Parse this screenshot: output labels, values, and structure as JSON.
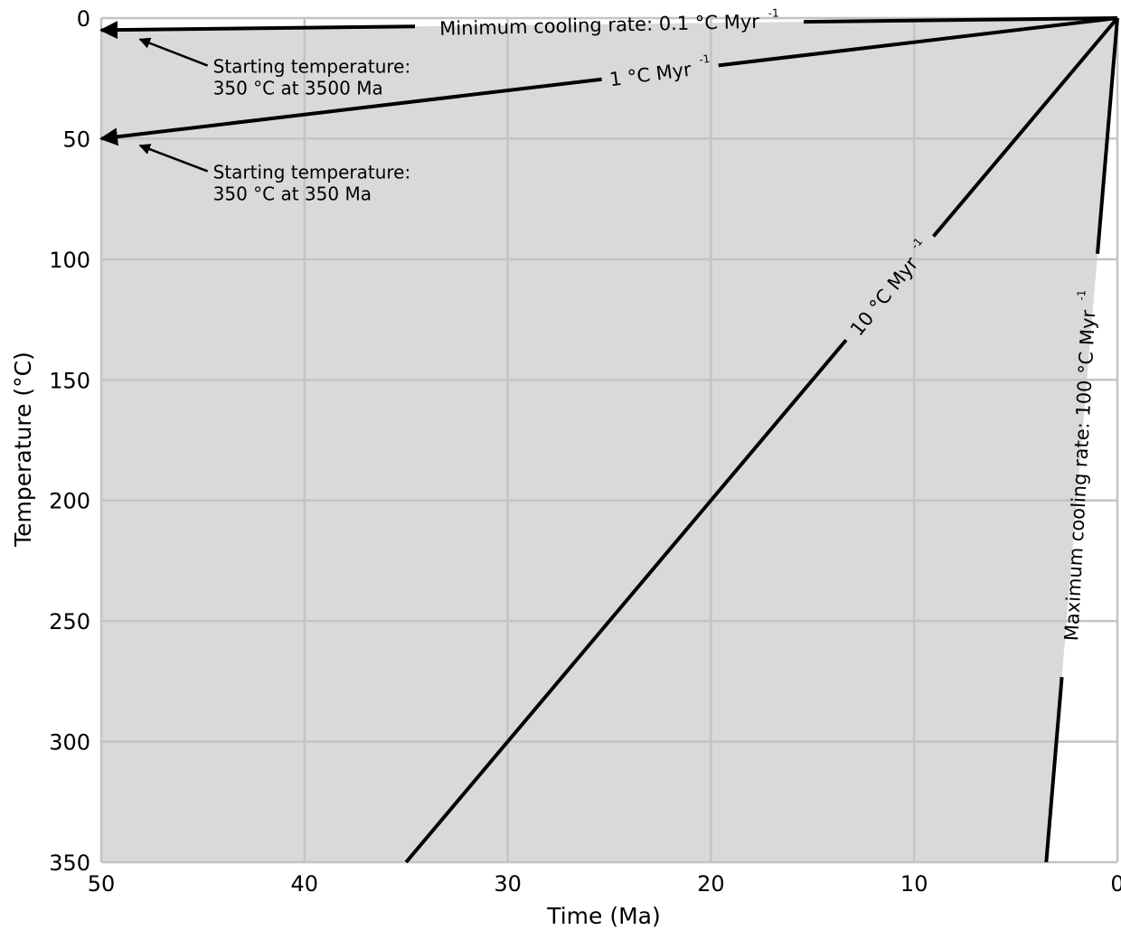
{
  "chart_data": {
    "type": "line",
    "title": "",
    "xlabel": "Time (Ma)",
    "ylabel": "Temperature (°C)",
    "xlim": [
      50,
      0
    ],
    "ylim": [
      350,
      0
    ],
    "x_inverted": true,
    "y_inverted": true,
    "grid": true,
    "x_ticks": [
      50,
      40,
      30,
      20,
      10,
      0
    ],
    "y_ticks": [
      0,
      50,
      100,
      150,
      200,
      250,
      300,
      350
    ],
    "region_color": "#d9d9d9",
    "line_color": "#000000",
    "grid_color": "#c4c4c4",
    "series": [
      {
        "id": "rate01",
        "label": "Minimum cooling rate: 0.1 °C Myr",
        "superscript": "-1",
        "x": [
          0,
          50
        ],
        "y": [
          0,
          5
        ],
        "arrow_end": true
      },
      {
        "id": "rate1",
        "label": "1 °C Myr",
        "superscript": "-1",
        "x": [
          0,
          50
        ],
        "y": [
          0,
          50
        ],
        "arrow_end": true
      },
      {
        "id": "rate10",
        "label": "10 °C Myr",
        "superscript": "-1",
        "x": [
          0,
          35
        ],
        "y": [
          0,
          350
        ],
        "arrow_end": false
      },
      {
        "id": "rate100",
        "label": "Maximum cooling rate: 100 °C Myr",
        "superscript": "-1",
        "x": [
          0,
          3.5
        ],
        "y": [
          0,
          350
        ],
        "arrow_end": false
      }
    ],
    "annotations": [
      {
        "id": "annot-3500",
        "lines": [
          "Starting temperature:",
          "350 °C at 3500 Ma"
        ],
        "x": 44.5,
        "y": 22.7,
        "arrow_to": [
          48.1,
          8.8
        ]
      },
      {
        "id": "annot-350",
        "lines": [
          "Starting temperature:",
          "350 °C at 350 Ma"
        ],
        "x": 44.5,
        "y": 66.5,
        "arrow_to": [
          48.1,
          52.8
        ]
      }
    ]
  }
}
